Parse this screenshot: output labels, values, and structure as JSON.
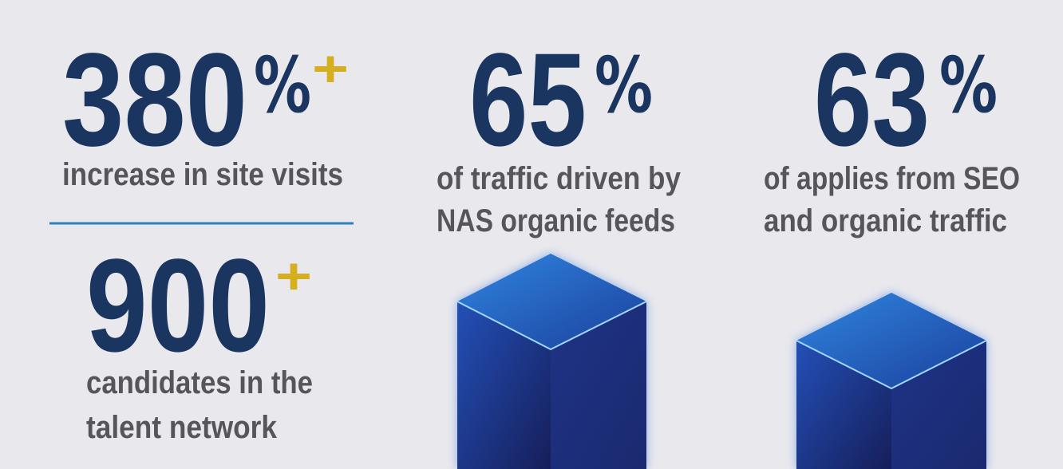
{
  "stats": [
    {
      "value": "380",
      "unit": "%",
      "plus": "+",
      "caption": [
        "increase in site visits"
      ]
    },
    {
      "value": "900",
      "plus": "+",
      "caption": [
        "candidates in the",
        "talent network"
      ]
    },
    {
      "value": "65",
      "unit": "%",
      "caption": [
        "of traffic driven by",
        "NAS organic feeds"
      ]
    },
    {
      "value": "63",
      "unit": "%",
      "caption": [
        "of applies from SEO",
        "and organic traffic"
      ]
    }
  ]
}
